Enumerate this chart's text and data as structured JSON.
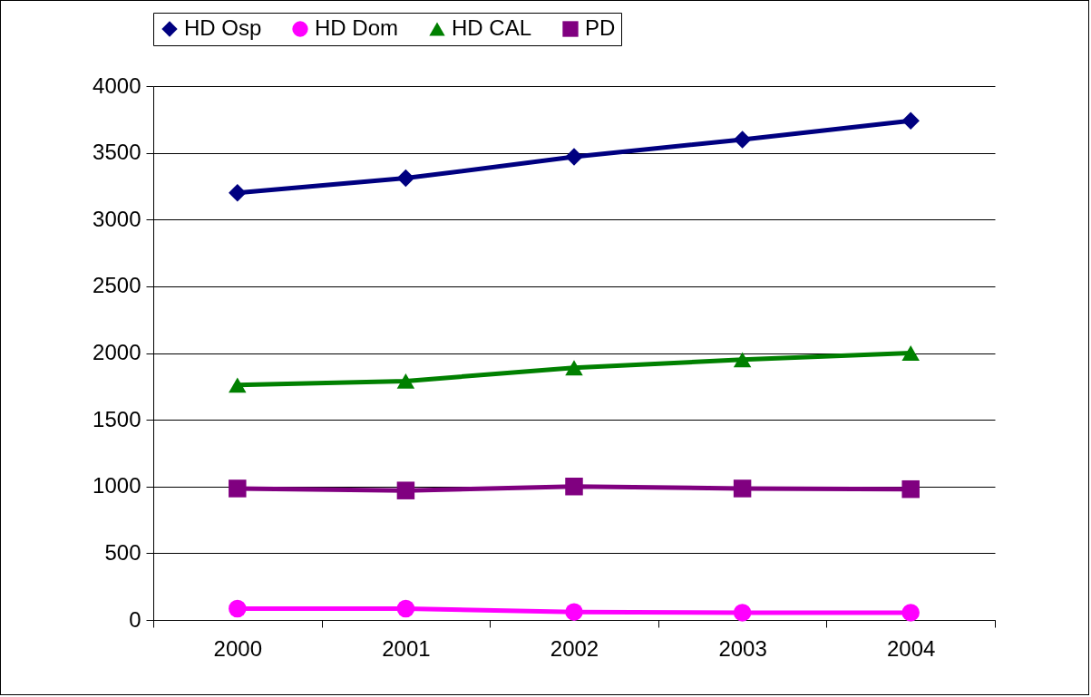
{
  "chart_data": {
    "type": "line",
    "categories": [
      "2000",
      "2001",
      "2002",
      "2003",
      "2004"
    ],
    "series": [
      {
        "name": "HD Osp",
        "color": "#000080",
        "marker": "diamond",
        "values": [
          3200,
          3310,
          3470,
          3600,
          3740
        ]
      },
      {
        "name": "HD Dom",
        "color": "#ff00ff",
        "marker": "circle",
        "values": [
          85,
          85,
          60,
          55,
          55
        ]
      },
      {
        "name": "HD CAL",
        "color": "#008000",
        "marker": "triangle",
        "values": [
          1760,
          1790,
          1890,
          1950,
          2000
        ]
      },
      {
        "name": "PD",
        "color": "#800080",
        "marker": "square",
        "values": [
          985,
          970,
          1000,
          985,
          980
        ]
      }
    ],
    "ylim": [
      0,
      4000
    ],
    "yticks": [
      0,
      500,
      1000,
      1500,
      2000,
      2500,
      3000,
      3500,
      4000
    ],
    "grid": "y",
    "legend": "top"
  }
}
